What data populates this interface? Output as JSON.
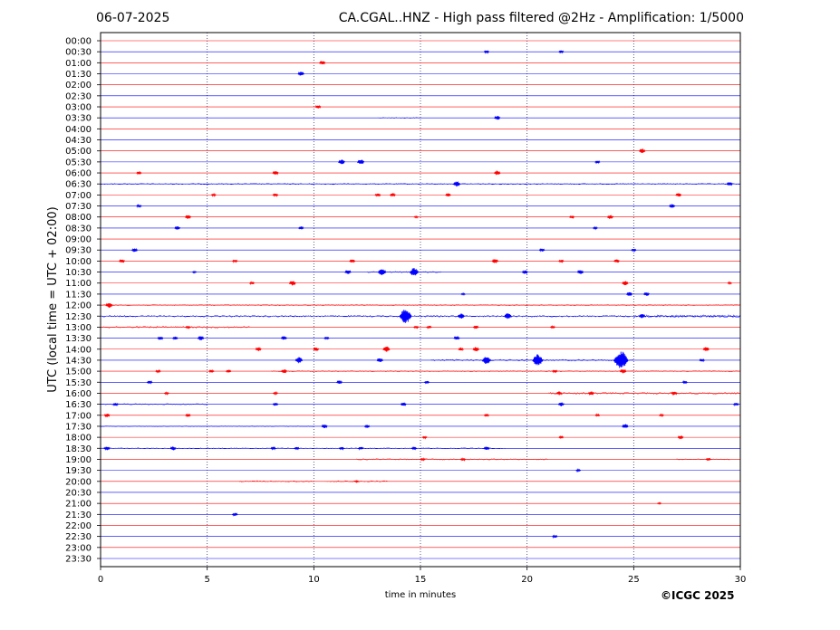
{
  "header": {
    "date": "06-07-2025",
    "title": "CA.CGAL..HNZ - High pass filtered @2Hz - Amplification: 1/5000"
  },
  "footer": {
    "copyright": "©ICGC 2025"
  },
  "chart_data": {
    "type": "line",
    "title": "CA.CGAL..HNZ - High pass filtered @2Hz - Amplification: 1/5000",
    "xlabel": "time in minutes",
    "ylabel": "UTC (local time = UTC + 02:00)",
    "xlim": [
      0,
      30
    ],
    "xticks": [
      0,
      5,
      10,
      15,
      20,
      25,
      30
    ],
    "vertical_gridlines": [
      5,
      10,
      15,
      20,
      25
    ],
    "grid": "vertical dotted",
    "colors": {
      "red": "#ff0000",
      "blue": "#0000ff",
      "grid": "#333366"
    },
    "rows": [
      {
        "label": "00:00",
        "color": "red",
        "events": []
      },
      {
        "label": "00:30",
        "color": "blue",
        "events": [
          [
            18.1,
            0.3
          ],
          [
            21.6,
            0.3
          ]
        ]
      },
      {
        "label": "01:00",
        "color": "red",
        "events": [
          [
            10.4,
            0.45
          ]
        ]
      },
      {
        "label": "01:30",
        "color": "blue",
        "events": [
          [
            9.4,
            0.5
          ]
        ]
      },
      {
        "label": "02:00",
        "color": "red",
        "events": []
      },
      {
        "label": "02:30",
        "color": "blue",
        "events": []
      },
      {
        "label": "03:00",
        "color": "red",
        "events": [
          [
            10.2,
            0.4
          ]
        ]
      },
      {
        "label": "03:30",
        "color": "blue",
        "events": [
          [
            18.6,
            0.45
          ]
        ],
        "noise": [
          [
            13,
            15,
            0.1
          ]
        ]
      },
      {
        "label": "04:00",
        "color": "red",
        "events": []
      },
      {
        "label": "04:30",
        "color": "blue",
        "events": []
      },
      {
        "label": "05:00",
        "color": "red",
        "events": [
          [
            25.4,
            0.5
          ]
        ]
      },
      {
        "label": "05:30",
        "color": "blue",
        "events": [
          [
            11.3,
            0.55
          ],
          [
            12.2,
            0.6
          ],
          [
            23.3,
            0.3
          ]
        ]
      },
      {
        "label": "06:00",
        "color": "red",
        "events": [
          [
            1.8,
            0.3
          ],
          [
            8.2,
            0.45
          ],
          [
            18.6,
            0.5
          ]
        ]
      },
      {
        "label": "06:30",
        "color": "blue",
        "events": [
          [
            16.7,
            0.6
          ],
          [
            29.5,
            0.45
          ]
        ],
        "noise": [
          [
            0,
            30,
            0.12
          ]
        ]
      },
      {
        "label": "07:00",
        "color": "red",
        "events": [
          [
            5.3,
            0.25
          ],
          [
            8.2,
            0.35
          ],
          [
            13.0,
            0.4
          ],
          [
            13.7,
            0.4
          ],
          [
            16.3,
            0.35
          ],
          [
            27.1,
            0.4
          ]
        ]
      },
      {
        "label": "07:30",
        "color": "blue",
        "events": [
          [
            1.8,
            0.3
          ],
          [
            26.8,
            0.45
          ]
        ]
      },
      {
        "label": "08:00",
        "color": "red",
        "events": [
          [
            4.1,
            0.45
          ],
          [
            14.8,
            0.2
          ],
          [
            22.1,
            0.3
          ],
          [
            23.9,
            0.45
          ]
        ]
      },
      {
        "label": "08:30",
        "color": "blue",
        "events": [
          [
            3.6,
            0.4
          ],
          [
            9.4,
            0.35
          ],
          [
            23.2,
            0.25
          ]
        ]
      },
      {
        "label": "09:00",
        "color": "red",
        "events": []
      },
      {
        "label": "09:30",
        "color": "blue",
        "events": [
          [
            1.6,
            0.45
          ],
          [
            20.7,
            0.35
          ],
          [
            25.0,
            0.3
          ]
        ]
      },
      {
        "label": "10:00",
        "color": "red",
        "events": [
          [
            1.0,
            0.4
          ],
          [
            6.3,
            0.3
          ],
          [
            11.8,
            0.4
          ],
          [
            18.5,
            0.5
          ],
          [
            21.6,
            0.3
          ],
          [
            24.2,
            0.4
          ]
        ]
      },
      {
        "label": "10:30",
        "color": "blue",
        "events": [
          [
            4.4,
            0.2
          ],
          [
            11.6,
            0.5
          ],
          [
            13.2,
            0.8
          ],
          [
            14.7,
            0.95
          ],
          [
            19.9,
            0.4
          ],
          [
            22.5,
            0.5
          ]
        ],
        "noise": [
          [
            12.5,
            16,
            0.15
          ]
        ]
      },
      {
        "label": "11:00",
        "color": "red",
        "events": [
          [
            7.1,
            0.3
          ],
          [
            9.0,
            0.55
          ],
          [
            24.6,
            0.5
          ],
          [
            29.5,
            0.2
          ]
        ]
      },
      {
        "label": "11:30",
        "color": "blue",
        "events": [
          [
            17.0,
            0.2
          ],
          [
            24.8,
            0.45
          ],
          [
            25.6,
            0.4
          ]
        ]
      },
      {
        "label": "12:00",
        "color": "red",
        "events": [
          [
            0.4,
            0.6
          ]
        ],
        "noise": [
          [
            0,
            30,
            0.12
          ]
        ]
      },
      {
        "label": "12:30",
        "color": "blue",
        "events": [
          [
            14.3,
            1.6
          ],
          [
            16.9,
            0.6
          ],
          [
            19.1,
            0.7
          ],
          [
            25.4,
            0.5
          ]
        ],
        "noise": [
          [
            0,
            30,
            0.2
          ],
          [
            25,
            30,
            0.3
          ]
        ]
      },
      {
        "label": "13:00",
        "color": "red",
        "events": [
          [
            4.1,
            0.3
          ],
          [
            14.8,
            0.3
          ],
          [
            15.4,
            0.3
          ],
          [
            17.6,
            0.35
          ],
          [
            21.2,
            0.25
          ]
        ],
        "noise": [
          [
            0,
            7,
            0.22
          ]
        ]
      },
      {
        "label": "13:30",
        "color": "blue",
        "events": [
          [
            2.8,
            0.4
          ],
          [
            3.5,
            0.35
          ],
          [
            4.7,
            0.5
          ],
          [
            8.6,
            0.45
          ],
          [
            10.6,
            0.3
          ],
          [
            16.7,
            0.45
          ]
        ]
      },
      {
        "label": "14:00",
        "color": "red",
        "events": [
          [
            7.4,
            0.45
          ],
          [
            10.1,
            0.4
          ],
          [
            13.4,
            0.65
          ],
          [
            16.9,
            0.35
          ],
          [
            17.6,
            0.5
          ],
          [
            28.4,
            0.5
          ]
        ]
      },
      {
        "label": "14:30",
        "color": "blue",
        "events": [
          [
            9.3,
            0.7
          ],
          [
            13.1,
            0.5
          ],
          [
            18.1,
            0.9
          ],
          [
            20.5,
            1.3
          ],
          [
            24.4,
            2.0
          ],
          [
            28.2,
            0.35
          ]
        ],
        "noise": [
          [
            15.5,
            25,
            0.2
          ]
        ]
      },
      {
        "label": "15:00",
        "color": "red",
        "events": [
          [
            2.7,
            0.3
          ],
          [
            5.2,
            0.3
          ],
          [
            6.0,
            0.3
          ],
          [
            8.6,
            0.45
          ],
          [
            21.3,
            0.3
          ],
          [
            24.5,
            0.5
          ]
        ],
        "noise": [
          [
            8,
            30,
            0.12
          ]
        ]
      },
      {
        "label": "15:30",
        "color": "blue",
        "events": [
          [
            2.3,
            0.35
          ],
          [
            11.2,
            0.4
          ],
          [
            15.3,
            0.3
          ],
          [
            27.4,
            0.3
          ]
        ]
      },
      {
        "label": "16:00",
        "color": "red",
        "events": [
          [
            3.1,
            0.25
          ],
          [
            8.2,
            0.25
          ],
          [
            21.5,
            0.4
          ],
          [
            23.0,
            0.45
          ],
          [
            26.9,
            0.45
          ]
        ],
        "noise": [
          [
            21,
            30,
            0.22
          ]
        ]
      },
      {
        "label": "16:30",
        "color": "blue",
        "events": [
          [
            0.7,
            0.35
          ],
          [
            8.2,
            0.35
          ],
          [
            14.2,
            0.4
          ],
          [
            21.6,
            0.45
          ],
          [
            29.8,
            0.35
          ]
        ],
        "noise": [
          [
            0,
            5,
            0.14
          ]
        ]
      },
      {
        "label": "17:00",
        "color": "red",
        "events": [
          [
            0.3,
            0.4
          ],
          [
            4.1,
            0.35
          ],
          [
            18.1,
            0.3
          ],
          [
            23.3,
            0.25
          ],
          [
            26.3,
            0.25
          ]
        ]
      },
      {
        "label": "17:30",
        "color": "blue",
        "events": [
          [
            10.5,
            0.45
          ],
          [
            12.5,
            0.35
          ],
          [
            24.6,
            0.5
          ]
        ],
        "noise": [
          [
            0,
            10,
            0.07
          ]
        ]
      },
      {
        "label": "18:00",
        "color": "red",
        "events": [
          [
            15.2,
            0.25
          ],
          [
            21.6,
            0.25
          ],
          [
            27.2,
            0.4
          ]
        ]
      },
      {
        "label": "18:30",
        "color": "blue",
        "events": [
          [
            0.3,
            0.45
          ],
          [
            3.4,
            0.45
          ],
          [
            8.1,
            0.3
          ],
          [
            9.2,
            0.3
          ],
          [
            11.3,
            0.3
          ],
          [
            12.2,
            0.3
          ],
          [
            14.7,
            0.3
          ],
          [
            18.1,
            0.4
          ]
        ],
        "noise": [
          [
            0,
            19,
            0.1
          ]
        ]
      },
      {
        "label": "19:00",
        "color": "red",
        "events": [
          [
            15.1,
            0.3
          ],
          [
            17.0,
            0.3
          ],
          [
            28.5,
            0.3
          ]
        ],
        "noise": [
          [
            12,
            21,
            0.14
          ],
          [
            27,
            29.5,
            0.1
          ]
        ]
      },
      {
        "label": "19:30",
        "color": "blue",
        "events": [
          [
            22.4,
            0.25
          ]
        ]
      },
      {
        "label": "20:00",
        "color": "red",
        "events": [
          [
            12.0,
            0.2
          ]
        ],
        "noise": [
          [
            6.5,
            10,
            0.14
          ],
          [
            10.5,
            13.5,
            0.16
          ]
        ]
      },
      {
        "label": "20:30",
        "color": "blue",
        "events": []
      },
      {
        "label": "21:00",
        "color": "red",
        "events": [
          [
            26.2,
            0.15
          ]
        ]
      },
      {
        "label": "21:30",
        "color": "blue",
        "events": [
          [
            6.3,
            0.35
          ]
        ]
      },
      {
        "label": "22:00",
        "color": "red",
        "events": []
      },
      {
        "label": "22:30",
        "color": "blue",
        "events": [
          [
            21.3,
            0.3
          ]
        ]
      },
      {
        "label": "23:00",
        "color": "red",
        "events": []
      },
      {
        "label": "23:30",
        "color": "blue",
        "events": []
      }
    ]
  }
}
